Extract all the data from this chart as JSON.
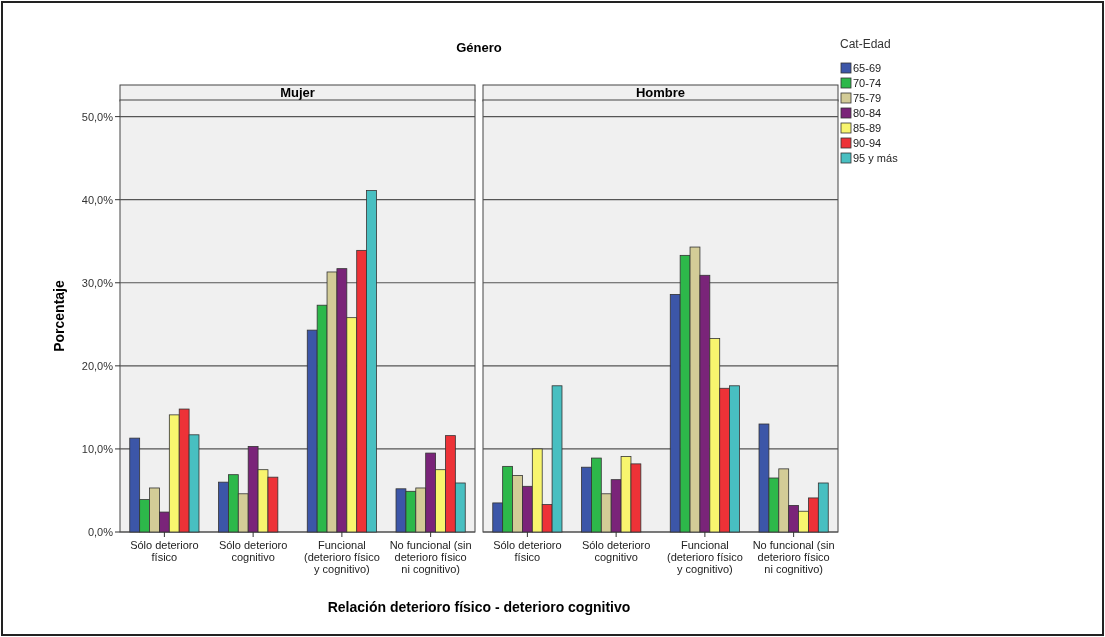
{
  "chart_data": [
    {
      "type": "bar",
      "title": "Mujer",
      "annotations": [
        "Género"
      ],
      "xlabel": "Relación deterioro físico - deterioro cognitivo",
      "ylabel": "Porcentaje",
      "categories": [
        "Sólo deterioro físico",
        "Sólo deterioro cognitivo",
        "Funcional (deterioro físico y cognitivo)",
        "No funcional (sin deterioro físico ni cognitivo)"
      ],
      "ylim": [
        0,
        52
      ],
      "yticks": [
        {
          "value": 0,
          "label": "0,0%"
        },
        {
          "value": 10,
          "label": "10,0%"
        },
        {
          "value": 20,
          "label": "20,0%"
        },
        {
          "value": 30,
          "label": "30,0%"
        },
        {
          "value": 40,
          "label": "40,0%"
        },
        {
          "value": 50,
          "label": "50,0%"
        }
      ],
      "grid": "y",
      "legend": "right",
      "legend_title": "Cat-Edad",
      "series": [
        {
          "name": "65-69",
          "color": "#3c56a8",
          "values": [
            11.3,
            6.0,
            24.3,
            5.2
          ]
        },
        {
          "name": "70-74",
          "color": "#2db84a",
          "values": [
            3.9,
            6.9,
            27.3,
            4.9
          ]
        },
        {
          "name": "75-79",
          "color": "#d3cc97",
          "values": [
            5.3,
            4.6,
            31.3,
            5.3
          ]
        },
        {
          "name": "80-84",
          "color": "#7a2479",
          "values": [
            2.4,
            10.3,
            31.7,
            9.5
          ]
        },
        {
          "name": "85-89",
          "color": "#f8f56e",
          "values": [
            14.1,
            7.5,
            25.8,
            7.5
          ]
        },
        {
          "name": "90-94",
          "color": "#ed3237",
          "values": [
            14.8,
            6.6,
            33.9,
            11.6
          ]
        },
        {
          "name": "95 y más",
          "color": "#48bfc1",
          "values": [
            11.7,
            0,
            41.1,
            5.9
          ]
        }
      ]
    },
    {
      "type": "bar",
      "title": "Hombre",
      "categories": [
        "Sólo deterioro físico",
        "Sólo deterioro cognitivo",
        "Funcional (deterioro físico y cognitivo)",
        "No funcional (sin deterioro físico ni cognitivo)"
      ],
      "ylim": [
        0,
        52
      ],
      "yticks": [
        {
          "value": 0,
          "label": null
        },
        {
          "value": 10,
          "label": null
        },
        {
          "value": 20,
          "label": null
        },
        {
          "value": 30,
          "label": null
        },
        {
          "value": 40,
          "label": null
        },
        {
          "value": 50,
          "label": null
        }
      ],
      "grid": "y",
      "tick_labels": "x",
      "series": [
        {
          "color": "#3c56a8",
          "values": [
            3.5,
            7.8,
            28.6,
            13.0
          ]
        },
        {
          "color": "#2db84a",
          "values": [
            7.9,
            8.9,
            33.3,
            6.5
          ]
        },
        {
          "color": "#d3cc97",
          "values": [
            6.8,
            4.6,
            34.3,
            7.6
          ]
        },
        {
          "color": "#7a2479",
          "values": [
            5.5,
            6.3,
            30.9,
            3.2
          ]
        },
        {
          "color": "#f8f56e",
          "values": [
            10.0,
            9.1,
            23.3,
            2.5
          ]
        },
        {
          "color": "#ed3237",
          "values": [
            3.3,
            8.2,
            17.3,
            4.1
          ]
        },
        {
          "color": "#48bfc1",
          "values": [
            17.6,
            0,
            17.6,
            5.9
          ]
        }
      ]
    }
  ]
}
